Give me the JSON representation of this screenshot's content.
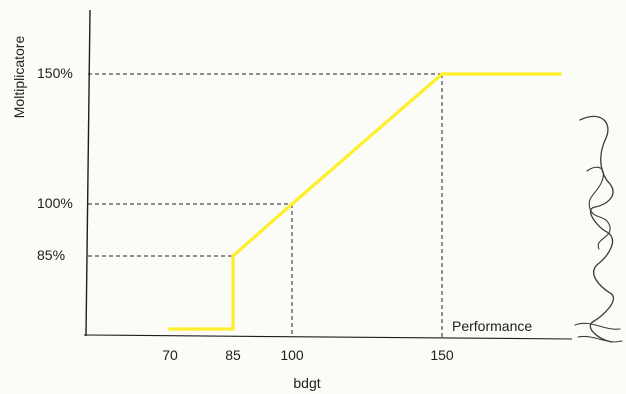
{
  "chart_data": {
    "type": "line",
    "title": "",
    "xlabel": "bdgt",
    "ylabel": "Moltiplicatore",
    "annotation": "Performance",
    "x_ticks": [
      "70",
      "85",
      "100",
      "150"
    ],
    "y_ticks": [
      "85%",
      "100%",
      "150%"
    ],
    "series": [
      {
        "x": [
          70,
          85,
          85,
          100,
          150,
          190
        ],
        "y": [
          0,
          0,
          85,
          100,
          150,
          150
        ],
        "color": "#ffef2a"
      }
    ],
    "reference_points": [
      {
        "x": 85,
        "y": 85
      },
      {
        "x": 100,
        "y": 100
      },
      {
        "x": 150,
        "y": 150
      }
    ],
    "colors": {
      "axis": "#1d1d1d",
      "guide": "#222222",
      "line": "#ffef2a",
      "signature": "#333333"
    }
  }
}
